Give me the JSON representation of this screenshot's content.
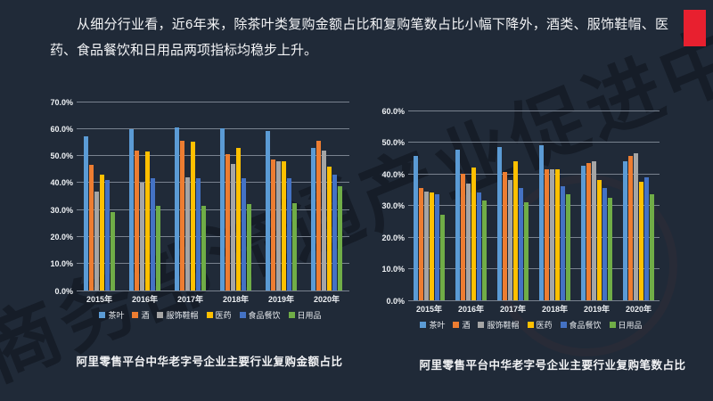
{
  "slide": {
    "header_text": "从细分行业看，近6年来，除茶叶类复购金额占比和复购笔数占比小幅下降外，酒类、服饰鞋帽、医药、食品餐饮和日用品两项指标均稳步上升。",
    "watermark_text": "商务部流通产业促进中心",
    "accent_color": "#e8202f",
    "background_color": "#202a38"
  },
  "chart_data": [
    {
      "type": "bar",
      "title": "阿里零售平台中华老字号企业主要行业复购金额占比",
      "categories": [
        "2015年",
        "2016年",
        "2017年",
        "2018年",
        "2019年",
        "2020年"
      ],
      "series": [
        {
          "key": "tea",
          "name": "茶叶",
          "color": "#5B9BD5",
          "values": [
            57.0,
            59.7,
            60.5,
            60.2,
            59.2,
            53.0
          ]
        },
        {
          "key": "liquor",
          "name": "酒",
          "color": "#ED7D31",
          "values": [
            46.5,
            52.0,
            55.5,
            50.5,
            48.5,
            55.5
          ]
        },
        {
          "key": "apparel",
          "name": "服饰鞋帽",
          "color": "#A5A5A5",
          "values": [
            36.5,
            40.0,
            42.0,
            47.0,
            48.0,
            52.0
          ]
        },
        {
          "key": "medicine",
          "name": "医药",
          "color": "#FFC000",
          "values": [
            43.0,
            51.5,
            55.0,
            53.0,
            48.0,
            46.0
          ]
        },
        {
          "key": "food",
          "name": "食品餐饮",
          "color": "#4472C4",
          "values": [
            41.0,
            41.5,
            41.5,
            41.5,
            41.5,
            43.0
          ]
        },
        {
          "key": "daily",
          "name": "日用品",
          "color": "#70AD47",
          "values": [
            29.0,
            31.5,
            31.5,
            32.0,
            32.5,
            38.5
          ]
        }
      ],
      "ylim": [
        0,
        70
      ],
      "ytick_step": 10,
      "ytick_format": "percent_one_decimal",
      "grid": true,
      "legend_position": "bottom"
    },
    {
      "type": "bar",
      "title": "阿里零售平台中华老字号企业主要行业复购笔数占比",
      "categories": [
        "2015年",
        "2016年",
        "2017年",
        "2018年",
        "2019年",
        "2020年"
      ],
      "series": [
        {
          "key": "tea",
          "name": "茶叶",
          "color": "#5B9BD5",
          "values": [
            45.5,
            47.5,
            48.5,
            49.0,
            42.5,
            44.0
          ]
        },
        {
          "key": "liquor",
          "name": "酒",
          "color": "#ED7D31",
          "values": [
            35.5,
            40.0,
            40.5,
            41.5,
            43.5,
            45.5
          ]
        },
        {
          "key": "apparel",
          "name": "服饰鞋帽",
          "color": "#A5A5A5",
          "values": [
            34.5,
            37.0,
            38.0,
            41.5,
            44.0,
            46.5
          ]
        },
        {
          "key": "medicine",
          "name": "医药",
          "color": "#FFC000",
          "values": [
            34.0,
            42.0,
            44.0,
            41.5,
            38.0,
            37.5
          ]
        },
        {
          "key": "food",
          "name": "食品餐饮",
          "color": "#4472C4",
          "values": [
            33.5,
            34.0,
            35.5,
            36.0,
            35.5,
            39.0
          ]
        },
        {
          "key": "daily",
          "name": "日用品",
          "color": "#70AD47",
          "values": [
            27.0,
            31.5,
            31.0,
            33.5,
            32.5,
            33.5
          ]
        }
      ],
      "ylim": [
        0,
        60
      ],
      "ytick_step": 10,
      "ytick_format": "percent_one_decimal",
      "grid": true,
      "legend_position": "bottom"
    }
  ]
}
